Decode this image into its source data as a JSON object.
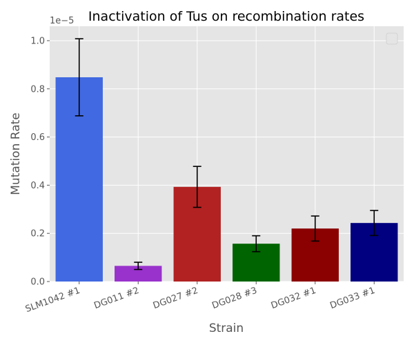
{
  "chart_data": {
    "type": "bar",
    "title": "Inactivation of Tus on recombination rates",
    "xlabel": "Strain",
    "ylabel": "Mutation Rate",
    "y_scale_label": "1e−5",
    "categories": [
      "SLM1042 #1",
      "DG011 #2",
      "DG027 #2",
      "DG028 #3",
      "DG032 #1",
      "DG033 #1"
    ],
    "values": [
      0.848,
      0.065,
      0.393,
      0.157,
      0.22,
      0.243
    ],
    "errors": [
      0.16,
      0.015,
      0.085,
      0.033,
      0.052,
      0.052
    ],
    "colors": [
      "#4169e1",
      "#9932cc",
      "#b22222",
      "#006400",
      "#8b0000",
      "#000080"
    ],
    "ylim": [
      0,
      1.06
    ],
    "yticks": [
      0.0,
      0.2,
      0.4,
      0.6,
      0.8,
      1.0
    ],
    "ytick_labels": [
      "0.0",
      "0.2",
      "0.4",
      "0.6",
      "0.8",
      "1.0"
    ],
    "grid": true,
    "legend": "top-right (empty)",
    "style": {
      "plot_background": "#e5e5e5",
      "grid_color": "#ffffff",
      "error_bar_color": "#000000"
    }
  }
}
